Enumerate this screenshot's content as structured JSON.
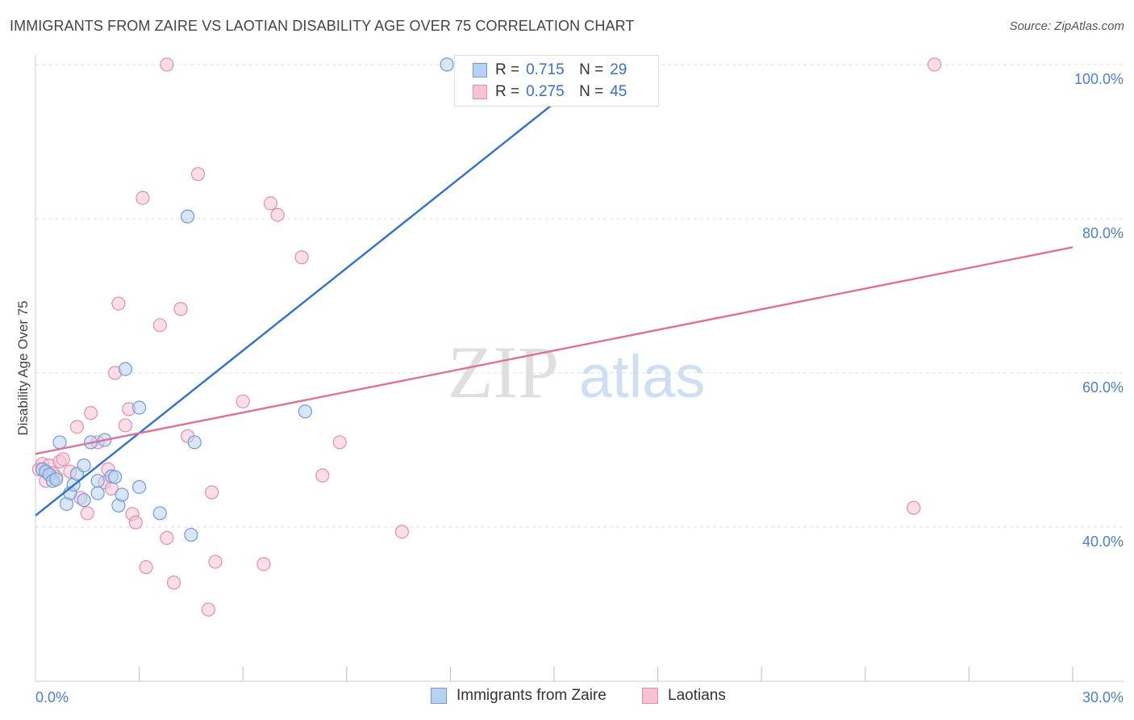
{
  "title": "IMMIGRANTS FROM ZAIRE VS LAOTIAN DISABILITY AGE OVER 75 CORRELATION CHART",
  "source": "Source: ZipAtlas.com",
  "watermark": {
    "zip": "ZIP",
    "atlas": "atlas"
  },
  "legend": {
    "series1": {
      "r_label": "R =",
      "r_value": "0.715",
      "n_label": "N =",
      "n_value": "29"
    },
    "series2": {
      "r_label": "R =",
      "r_value": "0.275",
      "n_label": "N =",
      "n_value": "45"
    }
  },
  "bottom_legend": {
    "series1": "Immigrants from Zaire",
    "series2": "Laotians"
  },
  "colors": {
    "blue_fill": "#b8d1f2",
    "blue_stroke": "#6f9ad8",
    "blue_line": "#2f70d0",
    "pink_fill": "#f7c3d3",
    "pink_stroke": "#e28fab",
    "pink_line": "#e07098",
    "axis_label": "#4a7fcf",
    "grid": "#dddddd"
  },
  "chart_data": {
    "type": "scatter",
    "title": "IMMIGRANTS FROM ZAIRE VS LAOTIAN DISABILITY AGE OVER 75 CORRELATION CHART",
    "xlabel": "",
    "ylabel": "Disability Age Over 75",
    "xlim": [
      0,
      30
    ],
    "ylim": [
      20,
      102
    ],
    "x_tick_labels": [
      {
        "value": 0,
        "label": "0.0%"
      },
      {
        "value": 30,
        "label": "30.0%"
      }
    ],
    "y_tick_labels": [
      {
        "value": 40,
        "label": "40.0%"
      },
      {
        "value": 60,
        "label": "60.0%"
      },
      {
        "value": 80,
        "label": "80.0%"
      },
      {
        "value": 100,
        "label": "100.0%"
      }
    ],
    "series": [
      {
        "name": "Immigrants from Zaire",
        "color": "blue",
        "points": [
          [
            0.2,
            47.5
          ],
          [
            0.3,
            47.2
          ],
          [
            0.4,
            46.8
          ],
          [
            0.5,
            46.0
          ],
          [
            0.6,
            46.2
          ],
          [
            0.7,
            51.0
          ],
          [
            0.9,
            43.0
          ],
          [
            1.0,
            44.4
          ],
          [
            1.1,
            45.5
          ],
          [
            1.2,
            46.9
          ],
          [
            1.4,
            43.5
          ],
          [
            1.4,
            48.0
          ],
          [
            1.6,
            51.0
          ],
          [
            1.8,
            46.0
          ],
          [
            1.8,
            44.4
          ],
          [
            2.0,
            51.3
          ],
          [
            2.2,
            46.6
          ],
          [
            2.3,
            46.5
          ],
          [
            2.4,
            42.8
          ],
          [
            2.5,
            44.2
          ],
          [
            2.6,
            60.5
          ],
          [
            3.0,
            55.5
          ],
          [
            3.0,
            45.2
          ],
          [
            3.6,
            41.8
          ],
          [
            4.4,
            80.3
          ],
          [
            4.5,
            39.0
          ],
          [
            4.6,
            51.0
          ],
          [
            7.8,
            55.0
          ],
          [
            11.9,
            100.0
          ]
        ],
        "trend": {
          "x": [
            0,
            15
          ],
          "y": [
            41.5,
            95.0
          ]
        }
      },
      {
        "name": "Laotians",
        "color": "pink",
        "points": [
          [
            0.1,
            47.5
          ],
          [
            0.2,
            48.2
          ],
          [
            0.3,
            46.0
          ],
          [
            0.4,
            48.0
          ],
          [
            0.5,
            47.0
          ],
          [
            0.6,
            46.5
          ],
          [
            0.7,
            48.5
          ],
          [
            0.8,
            48.8
          ],
          [
            1.0,
            47.2
          ],
          [
            1.2,
            53.0
          ],
          [
            1.3,
            43.8
          ],
          [
            1.5,
            41.8
          ],
          [
            1.6,
            54.8
          ],
          [
            1.8,
            51.0
          ],
          [
            2.0,
            45.8
          ],
          [
            2.1,
            47.5
          ],
          [
            2.2,
            45.0
          ],
          [
            2.3,
            60.0
          ],
          [
            2.4,
            69.0
          ],
          [
            2.6,
            53.2
          ],
          [
            2.7,
            55.3
          ],
          [
            2.8,
            41.7
          ],
          [
            2.9,
            40.6
          ],
          [
            3.1,
            82.7
          ],
          [
            3.2,
            34.8
          ],
          [
            3.6,
            66.2
          ],
          [
            3.8,
            38.6
          ],
          [
            3.8,
            100.0
          ],
          [
            4.0,
            32.8
          ],
          [
            4.2,
            68.3
          ],
          [
            4.4,
            51.8
          ],
          [
            4.7,
            85.8
          ],
          [
            5.0,
            29.3
          ],
          [
            5.1,
            44.5
          ],
          [
            5.2,
            35.5
          ],
          [
            6.0,
            56.3
          ],
          [
            6.6,
            35.2
          ],
          [
            6.8,
            82.0
          ],
          [
            7.0,
            80.5
          ],
          [
            7.7,
            75.0
          ],
          [
            8.3,
            46.7
          ],
          [
            8.8,
            51.0
          ],
          [
            10.6,
            39.4
          ],
          [
            25.4,
            42.5
          ],
          [
            26.0,
            100.0
          ]
        ],
        "trend": {
          "x": [
            0,
            30
          ],
          "y": [
            49.5,
            76.3
          ]
        }
      }
    ]
  }
}
